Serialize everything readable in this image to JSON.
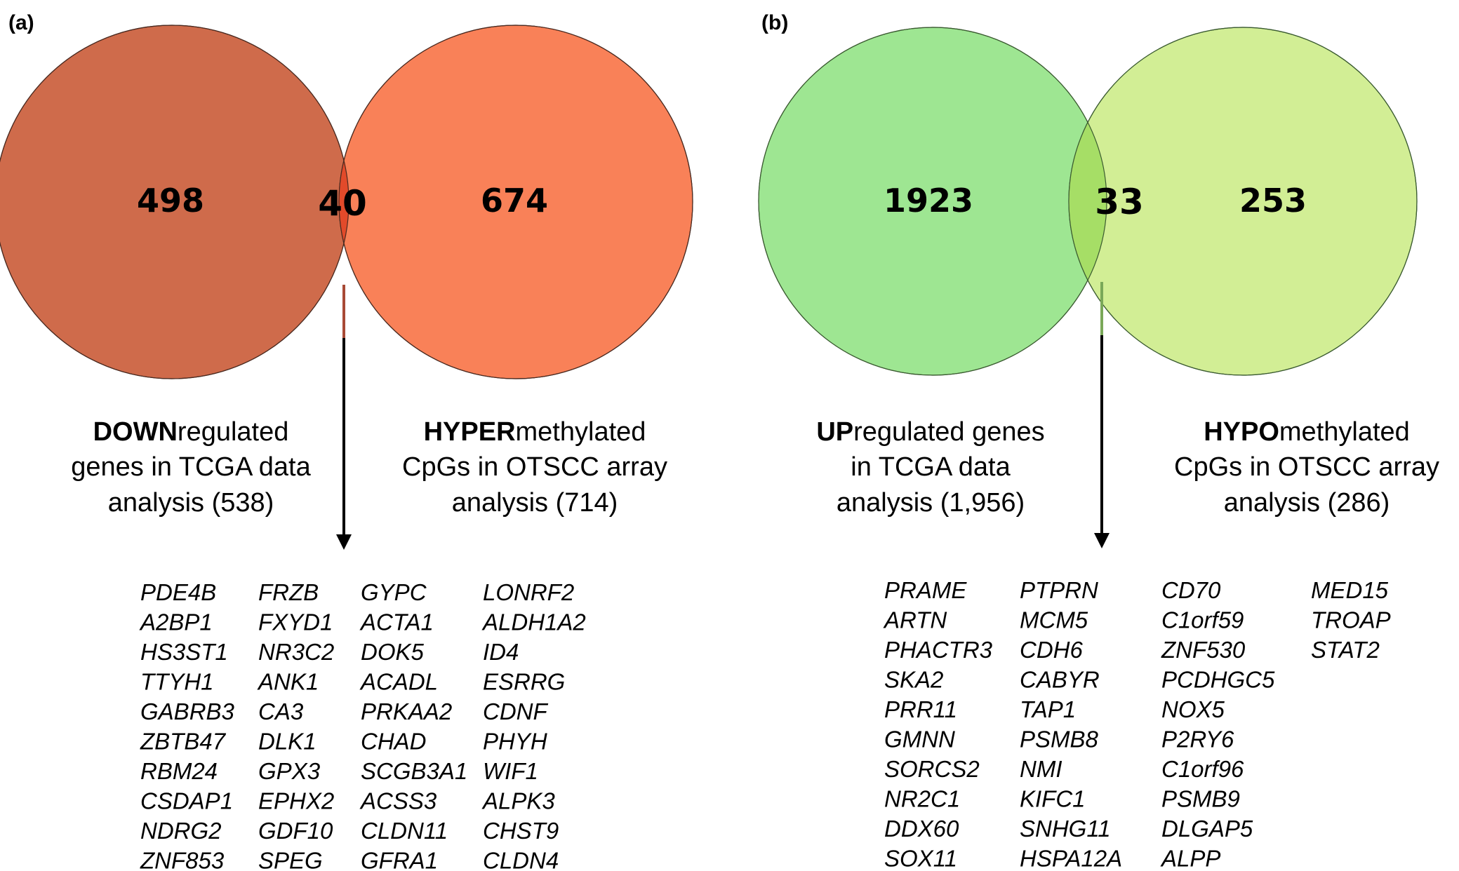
{
  "panels": {
    "a": {
      "label": "(a)",
      "left_count": "498",
      "overlap_count": "40",
      "right_count": "674",
      "left_caption": {
        "line1_bold": "DOWN",
        "line1_rest": "regulated",
        "line2": "genes in  TCGA data",
        "line3": "analysis (538)"
      },
      "right_caption": {
        "line1_bold": "HYPER",
        "line1_rest": "methylated",
        "line2": "CpGs in OTSCC array",
        "line3": "analysis (714)"
      },
      "colors": {
        "left_circle": "#cf6b4b",
        "right_circle": "#f98158",
        "overlap": "#e24a2a"
      },
      "gene_columns": [
        [
          "PDE4B",
          "A2BP1",
          "HS3ST1",
          "TTYH1",
          "GABRB3",
          "ZBTB47",
          "RBM24",
          "CSDAP1",
          "NDRG2",
          "ZNF853"
        ],
        [
          "FRZB",
          "FXYD1",
          "NR3C2",
          "ANK1",
          "CA3",
          "DLK1",
          "GPX3",
          "EPHX2",
          "GDF10",
          "SPEG"
        ],
        [
          "GYPC",
          "ACTA1",
          "DOK5",
          "ACADL",
          "PRKAA2",
          "CHAD",
          "SCGB3A1",
          "ACSS3",
          "CLDN11",
          "GFRA1"
        ],
        [
          "LONRF2",
          "ALDH1A2",
          "ID4",
          "ESRRG",
          "CDNF",
          "PHYH",
          "WIF1",
          "ALPK3",
          "CHST9",
          "CLDN4"
        ]
      ]
    },
    "b": {
      "label": "(b)",
      "left_count": "1923",
      "overlap_count": "33",
      "right_count": "253",
      "left_caption": {
        "line1_bold": "UP",
        "line1_rest": "regulated genes",
        "line2": "in  TCGA data",
        "line3": "analysis (1,956)"
      },
      "right_caption": {
        "line1_bold": "HYPO",
        "line1_rest": "methylated",
        "line2": "CpGs  in OTSCC array",
        "line3": "analysis (286)"
      },
      "colors": {
        "left_circle": "#9ee692",
        "right_circle": "#d2ee95",
        "overlap": "#a6de66"
      },
      "gene_columns": [
        [
          "PRAME",
          "ARTN",
          "PHACTR3",
          "SKA2",
          "PRR11",
          "GMNN",
          "SORCS2",
          "NR2C1",
          "DDX60",
          "SOX11"
        ],
        [
          "PTPRN",
          "MCM5",
          "CDH6",
          "CABYR",
          "TAP1",
          "PSMB8",
          "NMI",
          "KIFC1",
          "SNHG11",
          "HSPA12A"
        ],
        [
          "CD70",
          "C1orf59",
          "ZNF530",
          "PCDHGC5",
          "NOX5",
          "P2RY6",
          "C1orf96",
          "PSMB9",
          "DLGAP5",
          "ALPP"
        ],
        [
          "MED15",
          "TROAP",
          "STAT2"
        ]
      ]
    }
  }
}
